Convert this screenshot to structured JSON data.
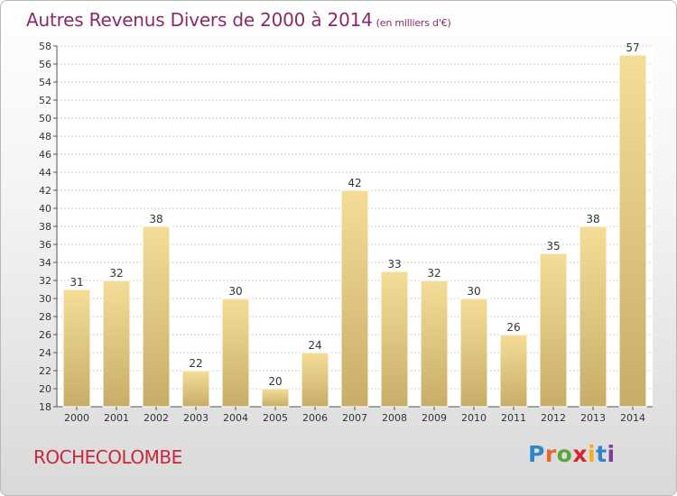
{
  "header": {
    "title": "Autres Revenus Divers de 2000 à 2014",
    "subtitle": "(en milliers d'€)"
  },
  "footer": {
    "commune": "ROCHECOLOMBE",
    "logo_letters": [
      "P",
      "r",
      "o",
      "x",
      "i",
      "t",
      "i"
    ],
    "logo_colors": [
      "#2f87c8",
      "#e8672a",
      "#59a63a",
      "#d7262b",
      "#f2b01e",
      "#2f87c8",
      "#7a3f97"
    ]
  },
  "colors": {
    "title": "#8a2a6a",
    "commune": "#c8283c",
    "bar_light": "#f5dd98",
    "bar_dark": "#c7ad68",
    "grid": "#cfcfcf",
    "text": "#333333"
  },
  "chart_data": {
    "type": "bar",
    "categories": [
      "2000",
      "2001",
      "2002",
      "2003",
      "2004",
      "2005",
      "2006",
      "2007",
      "2008",
      "2009",
      "2010",
      "2011",
      "2012",
      "2013",
      "2014"
    ],
    "values": [
      31,
      32,
      38,
      22,
      30,
      20,
      24,
      42,
      33,
      32,
      30,
      26,
      35,
      38,
      57
    ],
    "ylim": [
      18,
      58
    ],
    "yticks": [
      18,
      20,
      22,
      24,
      26,
      28,
      30,
      32,
      34,
      36,
      38,
      40,
      42,
      44,
      46,
      48,
      50,
      52,
      54,
      56,
      58
    ],
    "grid": true,
    "legend": "none"
  }
}
